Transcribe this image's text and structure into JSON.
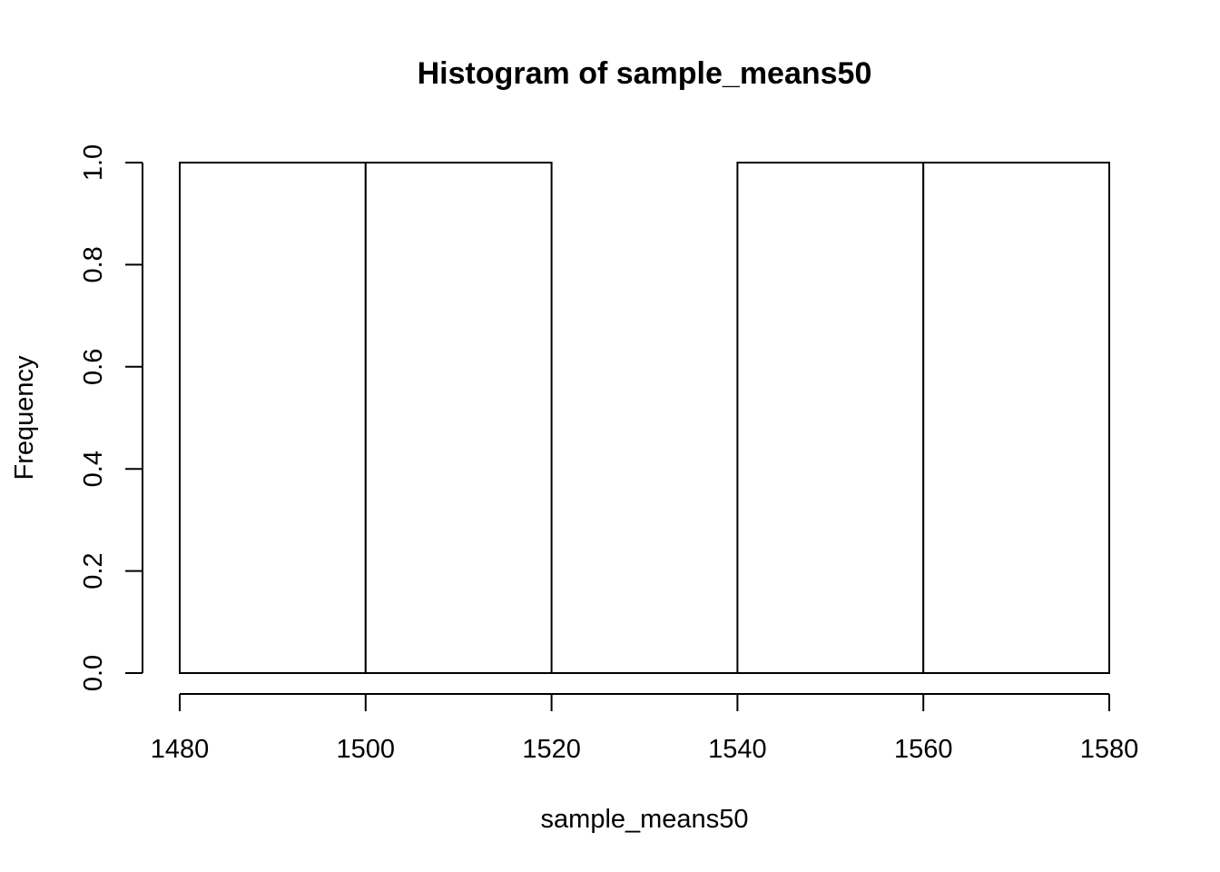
{
  "chart_data": {
    "type": "bar",
    "title": "Histogram of sample_means50",
    "xlabel": "sample_means50",
    "ylabel": "Frequency",
    "bins": [
      {
        "start": 1480,
        "end": 1500,
        "count": 1
      },
      {
        "start": 1500,
        "end": 1520,
        "count": 1
      },
      {
        "start": 1520,
        "end": 1540,
        "count": 0
      },
      {
        "start": 1540,
        "end": 1560,
        "count": 1
      },
      {
        "start": 1560,
        "end": 1580,
        "count": 1
      }
    ],
    "xlim": [
      1480,
      1580
    ],
    "ylim": [
      0,
      1
    ],
    "x_ticks": [
      "1480",
      "1500",
      "1520",
      "1540",
      "1560",
      "1580"
    ],
    "y_ticks": [
      "0.0",
      "0.2",
      "0.4",
      "0.6",
      "0.8",
      "1.0"
    ],
    "grid": false,
    "bar_fill": "#ffffff",
    "bar_stroke": "#000000"
  }
}
